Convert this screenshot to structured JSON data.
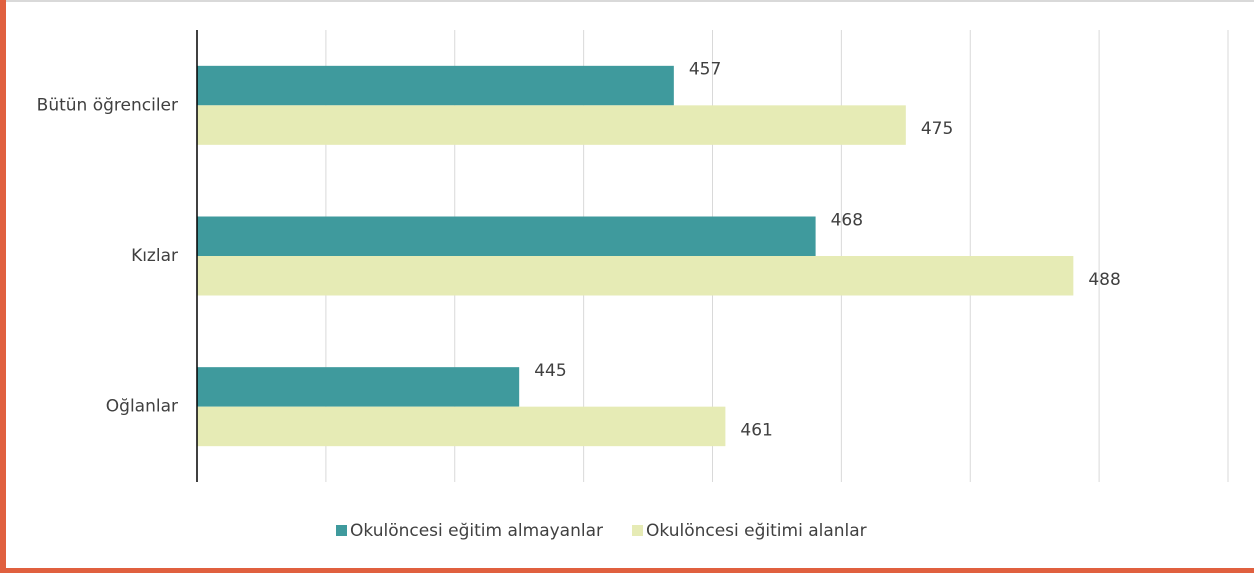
{
  "chart_data": {
    "type": "barh",
    "categories": [
      "Bütün öğrenciler",
      "Kızlar",
      "Oğlanlar"
    ],
    "series": [
      {
        "name": "Okulöncesi eğitim almayanlar",
        "color": "#3f9a9d",
        "values": [
          457,
          468,
          445
        ]
      },
      {
        "name": "Okulöncesi eğitimi alanlar",
        "color": "#e6ebb5",
        "values": [
          475,
          488,
          461
        ]
      }
    ],
    "xlim": [
      420,
      500
    ],
    "xticks": [
      420,
      430,
      440,
      450,
      460,
      470,
      480,
      490,
      500
    ],
    "grid": true,
    "legend": "bottom"
  }
}
